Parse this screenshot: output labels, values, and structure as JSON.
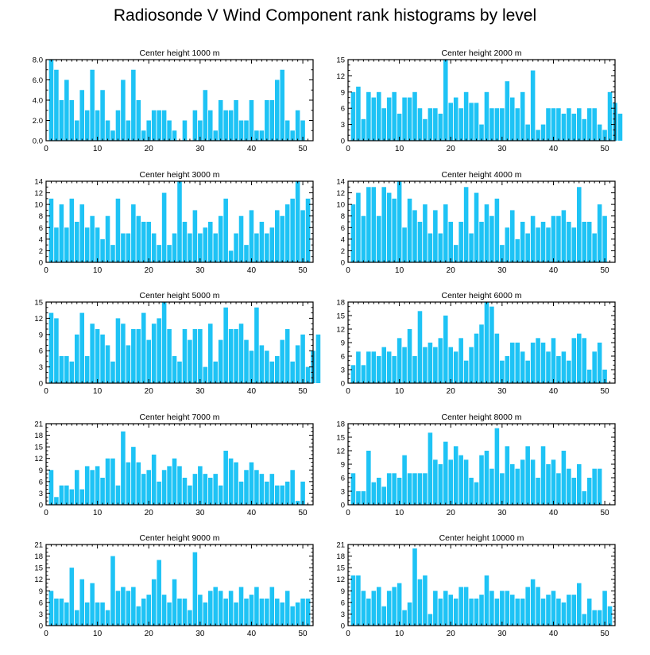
{
  "title": "Radiosonde V Wind Component rank histograms by level",
  "colors": {
    "bar": "#1ec3f5",
    "axis": "#000000",
    "background": "#ffffff"
  },
  "chart_data": [
    {
      "type": "bar",
      "title": "Center height 1000 m",
      "xlim": [
        0,
        52
      ],
      "ylim": [
        0,
        8
      ],
      "x_ticks": [
        0,
        10,
        20,
        30,
        40,
        50
      ],
      "y_ticks": [
        0,
        2,
        4,
        6,
        8
      ],
      "y_tick_labels": [
        "0.0",
        "2.0",
        "4.0",
        "6.0",
        "8.0"
      ],
      "values": [
        8,
        7,
        4,
        6,
        4,
        2,
        5,
        3,
        7,
        3,
        5,
        2,
        1,
        3,
        6,
        2,
        7,
        4,
        1,
        2,
        3,
        3,
        3,
        2,
        1,
        0,
        2,
        0,
        3,
        2,
        5,
        3,
        1,
        4,
        3,
        3,
        4,
        2,
        2,
        4,
        1,
        1,
        4,
        4,
        6,
        7,
        2,
        1,
        3,
        2
      ]
    },
    {
      "type": "bar",
      "title": "Center height 2000 m",
      "xlim": [
        0,
        52
      ],
      "ylim": [
        0,
        15
      ],
      "x_ticks": [
        0,
        10,
        20,
        30,
        40,
        50
      ],
      "y_ticks": [
        0,
        3,
        6,
        9,
        12,
        15
      ],
      "y_tick_labels": [
        "0",
        "3",
        "6",
        "9",
        "12",
        "15"
      ],
      "values": [
        9,
        10,
        4,
        9,
        8,
        9,
        6,
        8,
        9,
        5,
        8,
        8,
        9,
        6,
        4,
        6,
        6,
        5,
        15,
        7,
        8,
        6,
        9,
        7,
        7,
        3,
        9,
        6,
        6,
        6,
        11,
        8,
        6,
        9,
        3,
        13,
        2,
        3,
        6,
        6,
        6,
        5,
        6,
        5,
        6,
        4,
        6,
        6,
        3,
        2,
        9,
        7,
        5
      ]
    },
    {
      "type": "bar",
      "title": "Center height 3000 m",
      "xlim": [
        0,
        52
      ],
      "ylim": [
        0,
        14
      ],
      "x_ticks": [
        0,
        10,
        20,
        30,
        40,
        50
      ],
      "y_ticks": [
        0,
        2,
        4,
        6,
        8,
        10,
        12,
        14
      ],
      "y_tick_labels": [
        "0",
        "2",
        "4",
        "6",
        "8",
        "10",
        "12",
        "14"
      ],
      "values": [
        11,
        6,
        10,
        6,
        11,
        7,
        10,
        6,
        8,
        6,
        4,
        8,
        3,
        11,
        5,
        5,
        10,
        8,
        7,
        7,
        5,
        3,
        12,
        3,
        5,
        14,
        7,
        5,
        9,
        5,
        6,
        7,
        5,
        8,
        11,
        2,
        5,
        8,
        3,
        9,
        5,
        7,
        5,
        6,
        9,
        8,
        10,
        11,
        14,
        9,
        11
      ]
    },
    {
      "type": "bar",
      "title": "Center height 4000 m",
      "xlim": [
        0,
        52
      ],
      "ylim": [
        0,
        14
      ],
      "x_ticks": [
        0,
        10,
        20,
        30,
        40,
        50
      ],
      "y_ticks": [
        0,
        2,
        4,
        6,
        8,
        10,
        12,
        14
      ],
      "y_tick_labels": [
        "0",
        "2",
        "4",
        "6",
        "8",
        "10",
        "12",
        "14"
      ],
      "values": [
        10,
        12,
        8,
        13,
        13,
        8,
        13,
        12,
        11,
        14,
        6,
        11,
        9,
        7,
        10,
        5,
        9,
        5,
        10,
        7,
        3,
        7,
        13,
        5,
        12,
        7,
        10,
        8,
        11,
        3,
        6,
        9,
        4,
        7,
        5,
        8,
        6,
        7,
        6,
        8,
        8,
        9,
        7,
        6,
        13,
        7,
        7,
        5,
        10,
        8
      ]
    },
    {
      "type": "bar",
      "title": "Center height 5000 m",
      "xlim": [
        0,
        52
      ],
      "ylim": [
        0,
        15
      ],
      "x_ticks": [
        0,
        10,
        20,
        30,
        40,
        50
      ],
      "y_ticks": [
        0,
        3,
        6,
        9,
        12,
        15
      ],
      "y_tick_labels": [
        "0",
        "3",
        "6",
        "9",
        "12",
        "15"
      ],
      "values": [
        13,
        12,
        5,
        5,
        4,
        9,
        13,
        5,
        11,
        10,
        9,
        7,
        4,
        12,
        11,
        7,
        10,
        10,
        13,
        8,
        11,
        12,
        15,
        10,
        5,
        4,
        10,
        8,
        10,
        10,
        3,
        11,
        4,
        8,
        14,
        10,
        10,
        11,
        8,
        6,
        14,
        7,
        6,
        4,
        5,
        8,
        10,
        4,
        7,
        9,
        3,
        6,
        9
      ]
    },
    {
      "type": "bar",
      "title": "Center height 6000 m",
      "xlim": [
        0,
        52
      ],
      "ylim": [
        0,
        18
      ],
      "x_ticks": [
        0,
        10,
        20,
        30,
        40,
        50
      ],
      "y_ticks": [
        0,
        3,
        6,
        9,
        12,
        15,
        18
      ],
      "y_tick_labels": [
        "0",
        "3",
        "6",
        "9",
        "12",
        "15",
        "18"
      ],
      "values": [
        4,
        7,
        4,
        7,
        7,
        6,
        8,
        7,
        6,
        10,
        8,
        12,
        6,
        16,
        8,
        9,
        8,
        10,
        15,
        8,
        7,
        10,
        5,
        8,
        11,
        13,
        18,
        17,
        11,
        5,
        6,
        9,
        9,
        7,
        5,
        9,
        10,
        9,
        7,
        10,
        6,
        7,
        5,
        10,
        11,
        10,
        3,
        7,
        9,
        3
      ]
    },
    {
      "type": "bar",
      "title": "Center height 7000 m",
      "xlim": [
        0,
        52
      ],
      "ylim": [
        0,
        21
      ],
      "x_ticks": [
        0,
        10,
        20,
        30,
        40,
        50
      ],
      "y_ticks": [
        0,
        3,
        6,
        9,
        12,
        15,
        18,
        21
      ],
      "y_tick_labels": [
        "0",
        "3",
        "6",
        "9",
        "12",
        "15",
        "18",
        "21"
      ],
      "values": [
        9,
        2,
        5,
        5,
        4,
        9,
        4,
        10,
        9,
        10,
        7,
        12,
        12,
        5,
        19,
        11,
        15,
        11,
        8,
        9,
        13,
        6,
        9,
        10,
        12,
        10,
        7,
        5,
        8,
        10,
        8,
        7,
        8,
        5,
        14,
        12,
        11,
        6,
        9,
        11,
        9,
        8,
        6,
        8,
        5,
        5,
        6,
        9,
        1,
        6
      ]
    },
    {
      "type": "bar",
      "title": "Center height 8000 m",
      "xlim": [
        0,
        52
      ],
      "ylim": [
        0,
        18
      ],
      "x_ticks": [
        0,
        10,
        20,
        30,
        40,
        50
      ],
      "y_ticks": [
        0,
        3,
        6,
        9,
        12,
        15,
        18
      ],
      "y_tick_labels": [
        "0",
        "3",
        "6",
        "9",
        "12",
        "15",
        "18"
      ],
      "values": [
        7,
        3,
        3,
        12,
        5,
        6,
        4,
        7,
        7,
        6,
        11,
        7,
        7,
        7,
        7,
        16,
        10,
        9,
        14,
        10,
        13,
        11,
        10,
        6,
        5,
        11,
        12,
        8,
        17,
        7,
        13,
        9,
        8,
        10,
        13,
        10,
        6,
        13,
        9,
        10,
        7,
        12,
        8,
        6,
        9,
        3,
        6,
        8,
        8
      ]
    },
    {
      "type": "bar",
      "title": "Center height 9000 m",
      "xlim": [
        0,
        52
      ],
      "ylim": [
        0,
        21
      ],
      "x_ticks": [
        0,
        10,
        20,
        30,
        40,
        50
      ],
      "y_ticks": [
        0,
        3,
        6,
        9,
        12,
        15,
        18,
        21
      ],
      "y_tick_labels": [
        "0",
        "3",
        "6",
        "9",
        "12",
        "15",
        "18",
        "21"
      ],
      "values": [
        9,
        7,
        7,
        6,
        15,
        4,
        12,
        6,
        11,
        6,
        6,
        4,
        18,
        9,
        10,
        9,
        10,
        5,
        7,
        8,
        12,
        17,
        8,
        6,
        12,
        7,
        7,
        4,
        19,
        8,
        6,
        9,
        10,
        9,
        7,
        9,
        6,
        10,
        7,
        8,
        10,
        7,
        7,
        10,
        7,
        6,
        9,
        5,
        6,
        7,
        7
      ]
    },
    {
      "type": "bar",
      "title": "Center height 10000 m",
      "xlim": [
        0,
        52
      ],
      "ylim": [
        0,
        21
      ],
      "x_ticks": [
        0,
        10,
        20,
        30,
        40,
        50
      ],
      "y_ticks": [
        0,
        3,
        6,
        9,
        12,
        15,
        18,
        21
      ],
      "y_tick_labels": [
        "0",
        "3",
        "6",
        "9",
        "12",
        "15",
        "18",
        "21"
      ],
      "values": [
        13,
        13,
        9,
        7,
        9,
        10,
        5,
        9,
        10,
        11,
        4,
        6,
        20,
        12,
        13,
        3,
        9,
        7,
        9,
        8,
        7,
        10,
        10,
        7,
        7,
        8,
        13,
        9,
        7,
        9,
        9,
        8,
        7,
        7,
        10,
        12,
        10,
        7,
        8,
        9,
        7,
        6,
        8,
        8,
        11,
        3,
        7,
        4,
        4,
        9,
        5
      ]
    }
  ]
}
